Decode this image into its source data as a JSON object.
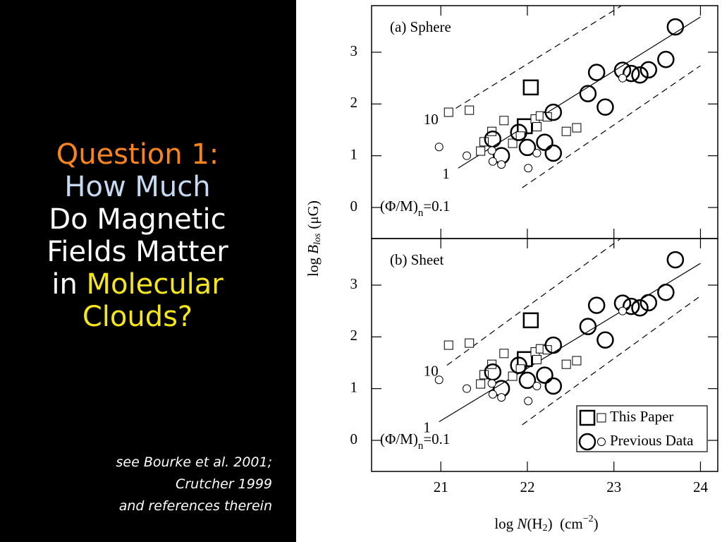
{
  "slide": {
    "title_parts": [
      "Question 1:",
      "How Much",
      "Do Magnetic",
      "Fields Matter",
      "in ",
      "Molecular",
      "Clouds?"
    ],
    "reference": [
      "see Bourke et al. 2001;",
      "Crutcher 1999",
      "and references therein"
    ]
  },
  "figure": {
    "y_label": [
      "log ",
      "B",
      "los",
      "(μG)"
    ],
    "x_label": [
      "log ",
      "N",
      "(H",
      "2",
      ")  (cm",
      "−2",
      ")"
    ]
  },
  "chart_data": [
    {
      "type": "scatter",
      "title": "(a) Sphere",
      "xlim": [
        20.2,
        24.2
      ],
      "ylim": [
        -0.6,
        3.9
      ],
      "xticks": [
        21,
        22,
        23,
        24
      ],
      "yticks": [
        0,
        1,
        2,
        3
      ],
      "show_xtick_labels": false,
      "legend": false,
      "series": [
        {
          "name": "This Paper",
          "marker": "square",
          "size": "large",
          "x": [
            22.04,
            21.97
          ],
          "values": [
            2.32,
            1.57
          ]
        },
        {
          "marker": "square",
          "size": "small",
          "x": [
            21.09,
            21.33,
            21.73,
            21.59,
            21.5,
            21.46,
            21.83,
            21.92,
            22.09,
            22.15,
            22.23,
            22.45,
            22.57,
            22.11
          ],
          "values": [
            1.84,
            1.88,
            1.68,
            1.47,
            1.27,
            1.09,
            1.24,
            1.38,
            1.71,
            1.77,
            1.75,
            1.47,
            1.54,
            1.56
          ]
        },
        {
          "name": "Previous Data",
          "marker": "circle",
          "size": "large",
          "x": [
            23.71,
            23.6,
            23.4,
            23.3,
            23.2,
            23.1,
            22.9,
            22.8,
            22.7,
            22.3,
            22.3,
            22.2,
            22.0,
            21.9,
            21.7,
            21.6
          ],
          "values": [
            3.49,
            2.86,
            2.66,
            2.56,
            2.59,
            2.65,
            1.94,
            2.61,
            2.2,
            1.84,
            1.05,
            1.26,
            1.16,
            1.45,
            1.0,
            1.32
          ]
        },
        {
          "marker": "circle",
          "size": "small",
          "x": [
            20.98,
            21.3,
            21.6,
            21.59,
            21.7,
            22.01,
            22.11,
            23.1
          ],
          "values": [
            1.17,
            1.0,
            0.89,
            1.1,
            0.83,
            0.76,
            1.05,
            2.5
          ]
        }
      ],
      "lines": [
        {
          "label": "10",
          "dash": true,
          "x": [
            21.07,
            23.08
          ],
          "values": [
            1.81,
            3.89
          ]
        },
        {
          "label": "1",
          "dash": false,
          "x": [
            21.2,
            24.0
          ],
          "values": [
            0.76,
            3.68
          ]
        },
        {
          "label_parts": [
            "(Φ/M)",
            "n",
            "=0.1"
          ],
          "dash": true,
          "x": [
            21.94,
            24.0
          ],
          "values": [
            0.38,
            2.74
          ]
        }
      ]
    },
    {
      "type": "scatter",
      "title": "(b) Sheet",
      "xlim": [
        20.2,
        24.2
      ],
      "ylim": [
        -0.6,
        3.9
      ],
      "xticks": [
        21,
        22,
        23,
        24
      ],
      "yticks": [
        0,
        1,
        2,
        3
      ],
      "show_xtick_labels": true,
      "legend": true,
      "series": [
        {
          "name": "This Paper",
          "marker": "square",
          "size": "large",
          "x": [
            22.04,
            21.97
          ],
          "values": [
            2.32,
            1.57
          ]
        },
        {
          "marker": "square",
          "size": "small",
          "x": [
            21.09,
            21.33,
            21.73,
            21.59,
            21.5,
            21.46,
            21.83,
            21.92,
            22.09,
            22.15,
            22.23,
            22.45,
            22.57,
            22.11
          ],
          "values": [
            1.84,
            1.88,
            1.68,
            1.47,
            1.27,
            1.09,
            1.24,
            1.38,
            1.71,
            1.77,
            1.75,
            1.47,
            1.54,
            1.56
          ]
        },
        {
          "name": "Previous Data",
          "marker": "circle",
          "size": "large",
          "x": [
            23.71,
            23.6,
            23.4,
            23.3,
            23.2,
            23.1,
            22.9,
            22.8,
            22.7,
            22.3,
            22.3,
            22.2,
            22.0,
            21.9,
            21.7,
            21.6
          ],
          "values": [
            3.49,
            2.86,
            2.66,
            2.56,
            2.59,
            2.65,
            1.94,
            2.61,
            2.2,
            1.84,
            1.05,
            1.26,
            1.16,
            1.45,
            1.0,
            1.32
          ]
        },
        {
          "marker": "circle",
          "size": "small",
          "x": [
            20.98,
            21.3,
            21.6,
            21.59,
            21.7,
            22.01,
            22.11,
            23.1
          ],
          "values": [
            1.17,
            1.0,
            0.89,
            1.1,
            0.83,
            0.76,
            1.05,
            2.5
          ]
        }
      ],
      "lines": [
        {
          "label": "10",
          "dash": true,
          "x": [
            21.07,
            23.07
          ],
          "values": [
            1.45,
            3.89
          ]
        },
        {
          "label": "1",
          "dash": false,
          "x": [
            20.98,
            24.0
          ],
          "values": [
            0.36,
            3.42
          ]
        },
        {
          "label_parts": [
            "(Φ/M)",
            "n",
            "=0.1"
          ],
          "dash": true,
          "x": [
            21.94,
            24.0
          ],
          "values": [
            0.3,
            2.79
          ]
        }
      ]
    }
  ]
}
